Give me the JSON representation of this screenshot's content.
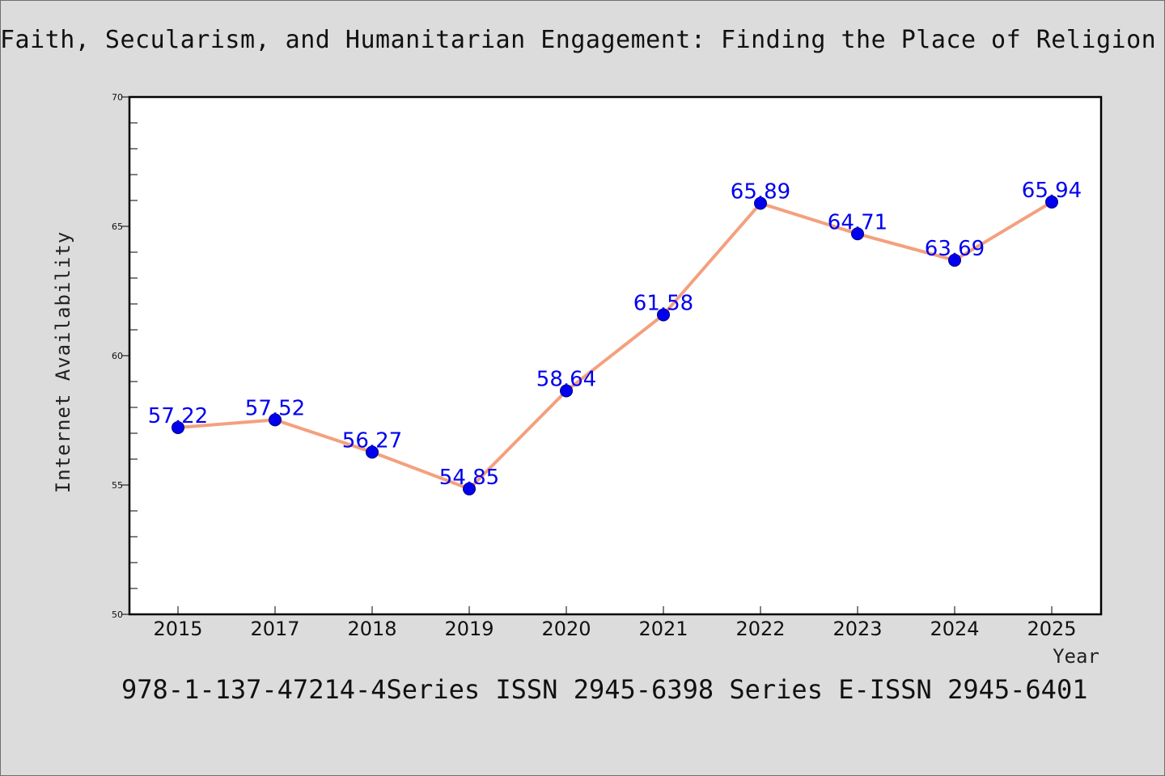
{
  "page": {
    "title": "Faith, Secularism, and Humanitarian Engagement: Finding the Place of Religion in",
    "footer": "978-1-137-47214-4Series ISSN 2945-6398 Series E-ISSN 2945-6401"
  },
  "chart_data": {
    "type": "line",
    "title": "Faith, Secularism, and Humanitarian Engagement: Finding the Place of Religion in",
    "xlabel": "Year",
    "ylabel": "Internet Availability",
    "categories": [
      "2015",
      "2017",
      "2018",
      "2019",
      "2020",
      "2021",
      "2022",
      "2023",
      "2024",
      "2025"
    ],
    "series": [
      {
        "values": [
          57.22,
          57.52,
          56.27,
          54.85,
          58.64,
          61.58,
          65.89,
          64.71,
          63.69,
          65.94
        ],
        "labels": [
          "57.22",
          "57.52",
          "56.27",
          "54.85",
          "58.64",
          "61.58",
          "65.89",
          "64.71",
          "63.69",
          "65.94"
        ]
      }
    ],
    "ylim": [
      50,
      70
    ],
    "yticks": [
      "50",
      "55",
      "60",
      "65",
      "70"
    ],
    "grid": false,
    "legend": "none",
    "colors": {
      "line": "#f4a07e",
      "marker": "#0000ee",
      "label": "#0000ee",
      "axis": "#000000"
    }
  }
}
